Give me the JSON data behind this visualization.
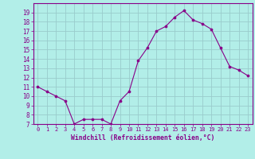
{
  "x": [
    0,
    1,
    2,
    3,
    4,
    5,
    6,
    7,
    8,
    9,
    10,
    11,
    12,
    13,
    14,
    15,
    16,
    17,
    18,
    19,
    20,
    21,
    22,
    23
  ],
  "y": [
    11,
    10.5,
    10,
    9.5,
    7,
    7.5,
    7.5,
    7.5,
    7,
    9.5,
    10.5,
    13.8,
    15.2,
    17,
    17.5,
    18.5,
    19.2,
    18.2,
    17.8,
    17.2,
    15.2,
    13.2,
    12.8,
    12.2
  ],
  "line_color": "#880088",
  "marker": "o",
  "marker_size": 2.2,
  "bg_color": "#b2eee8",
  "grid_color": "#99cccc",
  "xlabel": "Windchill (Refroidissement éolien,°C)",
  "xlabel_color": "#880088",
  "tick_color": "#880088",
  "spine_color": "#880088",
  "ylim": [
    7,
    20
  ],
  "yticks": [
    7,
    8,
    9,
    10,
    11,
    12,
    13,
    14,
    15,
    16,
    17,
    18,
    19
  ],
  "xlim": [
    -0.5,
    23.5
  ],
  "xticks": [
    0,
    1,
    2,
    3,
    4,
    5,
    6,
    7,
    8,
    9,
    10,
    11,
    12,
    13,
    14,
    15,
    16,
    17,
    18,
    19,
    20,
    21,
    22,
    23
  ]
}
